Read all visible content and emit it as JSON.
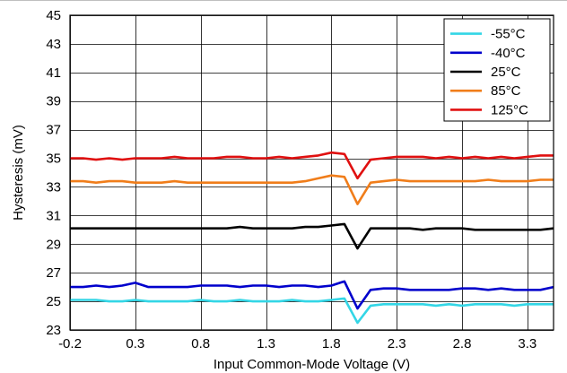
{
  "chart_data": {
    "type": "line",
    "title": "",
    "xlabel": "Input Common-Mode Voltage (V)",
    "ylabel": "Hysteresis (mV)",
    "xlim": [
      -0.2,
      3.5
    ],
    "ylim": [
      23,
      45
    ],
    "xticks": [
      "-0.2",
      "0.3",
      "0.8",
      "1.3",
      "1.8",
      "2.3",
      "2.8",
      "3.3"
    ],
    "xtick_values": [
      -0.2,
      0.3,
      0.8,
      1.3,
      1.8,
      2.3,
      2.8,
      3.3
    ],
    "yticks": [
      "23",
      "25",
      "27",
      "29",
      "31",
      "33",
      "35",
      "37",
      "39",
      "41",
      "43",
      "45"
    ],
    "ytick_values": [
      23,
      25,
      27,
      29,
      31,
      33,
      35,
      37,
      39,
      41,
      43,
      45
    ],
    "grid": true,
    "legend_position": "top-right",
    "x": [
      -0.2,
      -0.1,
      0.0,
      0.1,
      0.2,
      0.3,
      0.4,
      0.5,
      0.6,
      0.7,
      0.8,
      0.9,
      1.0,
      1.1,
      1.2,
      1.3,
      1.4,
      1.5,
      1.6,
      1.7,
      1.8,
      1.9,
      2.0,
      2.1,
      2.2,
      2.3,
      2.4,
      2.5,
      2.6,
      2.7,
      2.8,
      2.9,
      3.0,
      3.1,
      3.2,
      3.3,
      3.4,
      3.5
    ],
    "series": [
      {
        "name": "-55°C",
        "color": "#33d6e6",
        "values": [
          25.1,
          25.1,
          25.1,
          25.0,
          25.0,
          25.1,
          25.0,
          25.0,
          25.0,
          25.0,
          25.1,
          25.0,
          25.0,
          25.1,
          25.0,
          25.0,
          25.0,
          25.1,
          25.0,
          25.0,
          25.1,
          25.2,
          23.5,
          24.7,
          24.8,
          24.8,
          24.8,
          24.8,
          24.7,
          24.8,
          24.7,
          24.8,
          24.8,
          24.8,
          24.7,
          24.8,
          24.8,
          24.8
        ]
      },
      {
        "name": "-40°C",
        "color": "#0000cc",
        "values": [
          26.0,
          26.0,
          26.1,
          26.0,
          26.1,
          26.3,
          26.0,
          26.0,
          26.0,
          26.0,
          26.1,
          26.1,
          26.1,
          26.0,
          26.1,
          26.1,
          26.0,
          26.1,
          26.1,
          26.0,
          26.1,
          26.4,
          24.5,
          25.8,
          25.9,
          25.9,
          25.8,
          25.8,
          25.8,
          25.8,
          25.9,
          25.9,
          25.8,
          25.9,
          25.8,
          25.8,
          25.8,
          26.0
        ]
      },
      {
        "name": "25°C",
        "color": "#000000",
        "values": [
          30.1,
          30.1,
          30.1,
          30.1,
          30.1,
          30.1,
          30.1,
          30.1,
          30.1,
          30.1,
          30.1,
          30.1,
          30.1,
          30.2,
          30.1,
          30.1,
          30.1,
          30.1,
          30.2,
          30.2,
          30.3,
          30.4,
          28.7,
          30.1,
          30.1,
          30.1,
          30.1,
          30.0,
          30.1,
          30.1,
          30.1,
          30.0,
          30.0,
          30.0,
          30.0,
          30.0,
          30.0,
          30.1
        ]
      },
      {
        "name": "85°C",
        "color": "#f07d1a",
        "values": [
          33.4,
          33.4,
          33.3,
          33.4,
          33.4,
          33.3,
          33.3,
          33.3,
          33.4,
          33.3,
          33.3,
          33.3,
          33.3,
          33.3,
          33.3,
          33.3,
          33.3,
          33.3,
          33.4,
          33.6,
          33.8,
          33.7,
          31.8,
          33.3,
          33.4,
          33.5,
          33.4,
          33.4,
          33.4,
          33.4,
          33.4,
          33.4,
          33.5,
          33.4,
          33.4,
          33.4,
          33.5,
          33.5
        ]
      },
      {
        "name": "125°C",
        "color": "#e01010",
        "values": [
          35.0,
          35.0,
          34.9,
          35.0,
          34.9,
          35.0,
          35.0,
          35.0,
          35.1,
          35.0,
          35.0,
          35.0,
          35.1,
          35.1,
          35.0,
          35.0,
          35.1,
          35.0,
          35.1,
          35.2,
          35.4,
          35.3,
          33.6,
          34.9,
          35.0,
          35.1,
          35.1,
          35.1,
          35.0,
          35.1,
          35.0,
          35.1,
          35.0,
          35.1,
          35.0,
          35.1,
          35.2,
          35.2
        ]
      }
    ]
  }
}
